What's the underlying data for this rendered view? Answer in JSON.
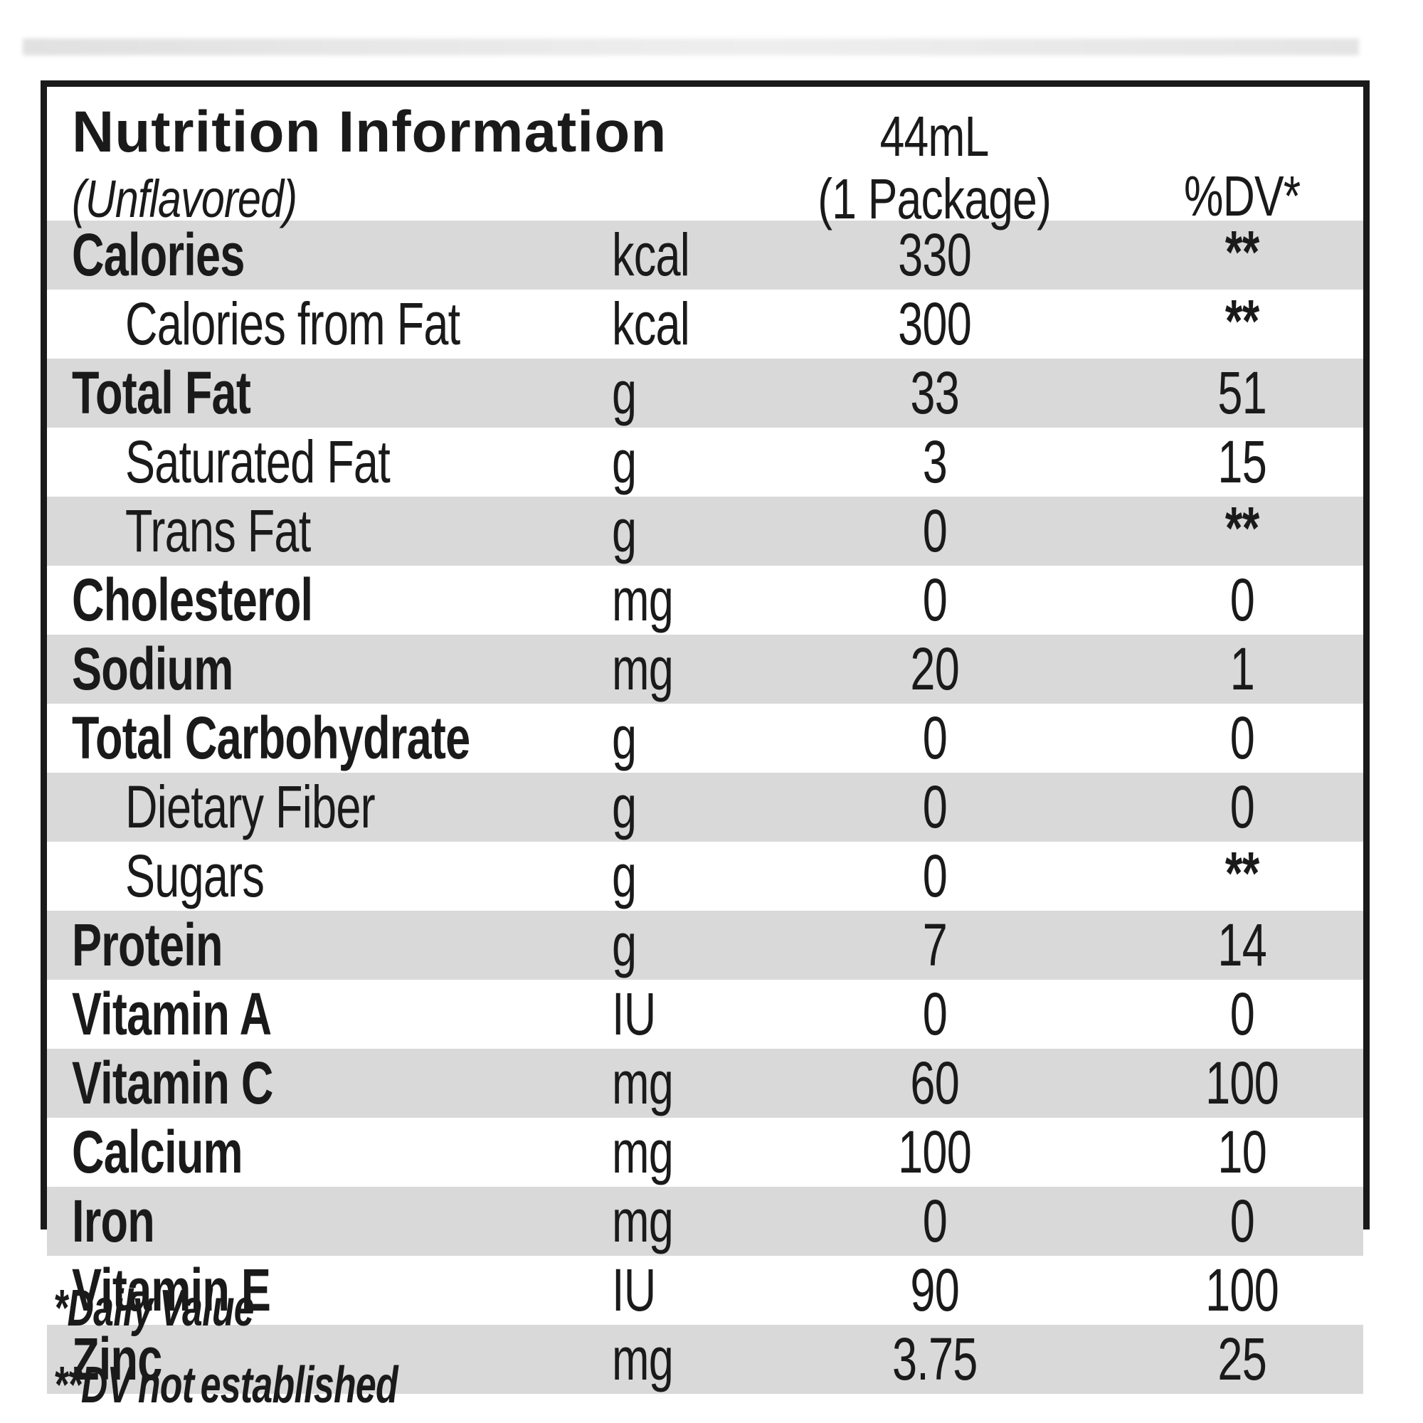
{
  "label": {
    "title": "Nutrition Information",
    "subtitle": "(Unflavored)",
    "serving_size": "44mL",
    "serving_desc": "(1 Package)",
    "dv_header": "%DV*",
    "rows": [
      {
        "name": "Calories",
        "unit": "kcal",
        "amount": "330",
        "dv": "**",
        "indent": false
      },
      {
        "name": "Calories from Fat",
        "unit": "kcal",
        "amount": "300",
        "dv": "**",
        "indent": true
      },
      {
        "name": "Total Fat",
        "unit": "g",
        "amount": "33",
        "dv": "51",
        "indent": false
      },
      {
        "name": "Saturated Fat",
        "unit": "g",
        "amount": "3",
        "dv": "15",
        "indent": true
      },
      {
        "name": "Trans Fat",
        "unit": "g",
        "amount": "0",
        "dv": "**",
        "indent": true
      },
      {
        "name": "Cholesterol",
        "unit": "mg",
        "amount": "0",
        "dv": "0",
        "indent": false
      },
      {
        "name": "Sodium",
        "unit": "mg",
        "amount": "20",
        "dv": "1",
        "indent": false
      },
      {
        "name": "Total Carbohydrate",
        "unit": "g",
        "amount": "0",
        "dv": "0",
        "indent": false
      },
      {
        "name": "Dietary Fiber",
        "unit": "g",
        "amount": "0",
        "dv": "0",
        "indent": true
      },
      {
        "name": "Sugars",
        "unit": "g",
        "amount": "0",
        "dv": "**",
        "indent": true
      },
      {
        "name": "Protein",
        "unit": "g",
        "amount": "7",
        "dv": "14",
        "indent": false
      },
      {
        "name": "Vitamin A",
        "unit": "IU",
        "amount": "0",
        "dv": "0",
        "indent": false
      },
      {
        "name": "Vitamin C",
        "unit": "mg",
        "amount": "60",
        "dv": "100",
        "indent": false
      },
      {
        "name": "Calcium",
        "unit": "mg",
        "amount": "100",
        "dv": "10",
        "indent": false
      },
      {
        "name": "Iron",
        "unit": "mg",
        "amount": "0",
        "dv": "0",
        "indent": false
      },
      {
        "name": "Vitamin E",
        "unit": "IU",
        "amount": "90",
        "dv": "100",
        "indent": false
      },
      {
        "name": "Zinc",
        "unit": "mg",
        "amount": "3.75",
        "dv": "25",
        "indent": false
      }
    ],
    "footnotes": [
      "*Daily Value",
      "**DV not established"
    ],
    "colors": {
      "stripe": "#d9d9d9",
      "ink": "#1a1a1a"
    }
  }
}
